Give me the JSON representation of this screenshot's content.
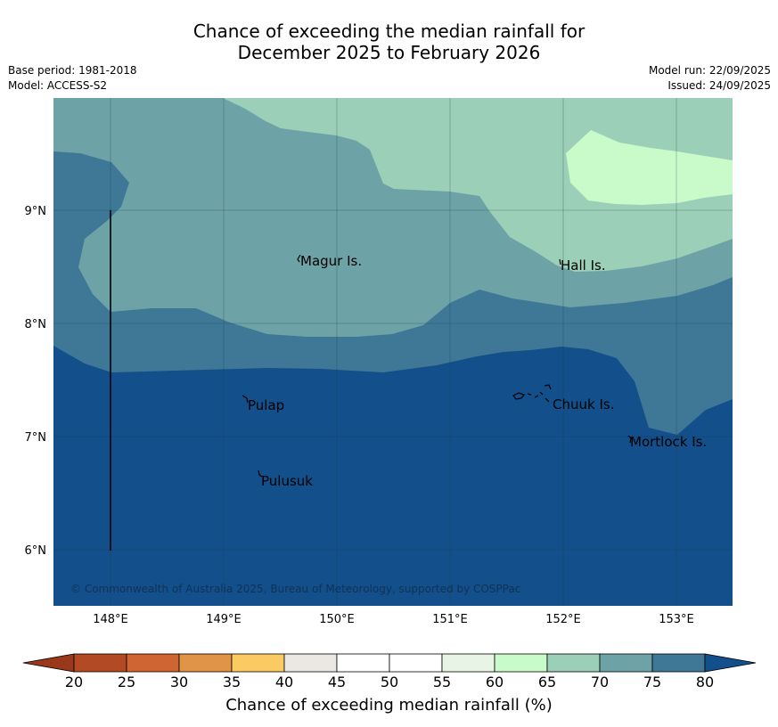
{
  "title": {
    "line1": "Chance of exceeding the median rainfall for",
    "line2": "December 2025 to February 2026"
  },
  "meta": {
    "base_period": "Base period: 1981-2018",
    "model": "Model: ACCESS-S2",
    "model_run": "Model run: 22/09/2025",
    "issued": "Issued: 24/09/2025"
  },
  "map": {
    "lon_ticks": [
      "148°E",
      "149°E",
      "150°E",
      "151°E",
      "152°E",
      "153°E"
    ],
    "lat_ticks": [
      "9°N",
      "8°N",
      "7°N",
      "6°N"
    ],
    "places": {
      "magur": "Magur Is.",
      "hall": "Hall Is.",
      "pulap": "Pulap",
      "chuuk": "Chuuk Is.",
      "mortlock": "Mortlock Is.",
      "pulusuk": "Pulusuk"
    },
    "copyright": "© Commonwealth of Australia 2025, Bureau of Meteorology, supported by COSPPac"
  },
  "colorbar": {
    "ticks": [
      "20",
      "25",
      "30",
      "35",
      "40",
      "45",
      "50",
      "55",
      "60",
      "65",
      "70",
      "75",
      "80"
    ],
    "colors": [
      "#b24a26",
      "#cf6533",
      "#e09448",
      "#fcca62",
      "#ebe8e4",
      "#ffffff",
      "#ffffff",
      "#e8f4e6",
      "#c9fac9",
      "#9ccfb7",
      "#6da3a6",
      "#3f7896"
    ],
    "low_extend_color": "#99381b",
    "high_extend_color": "#134f8a",
    "label": "Chance of exceeding median rainfall (%)"
  }
}
